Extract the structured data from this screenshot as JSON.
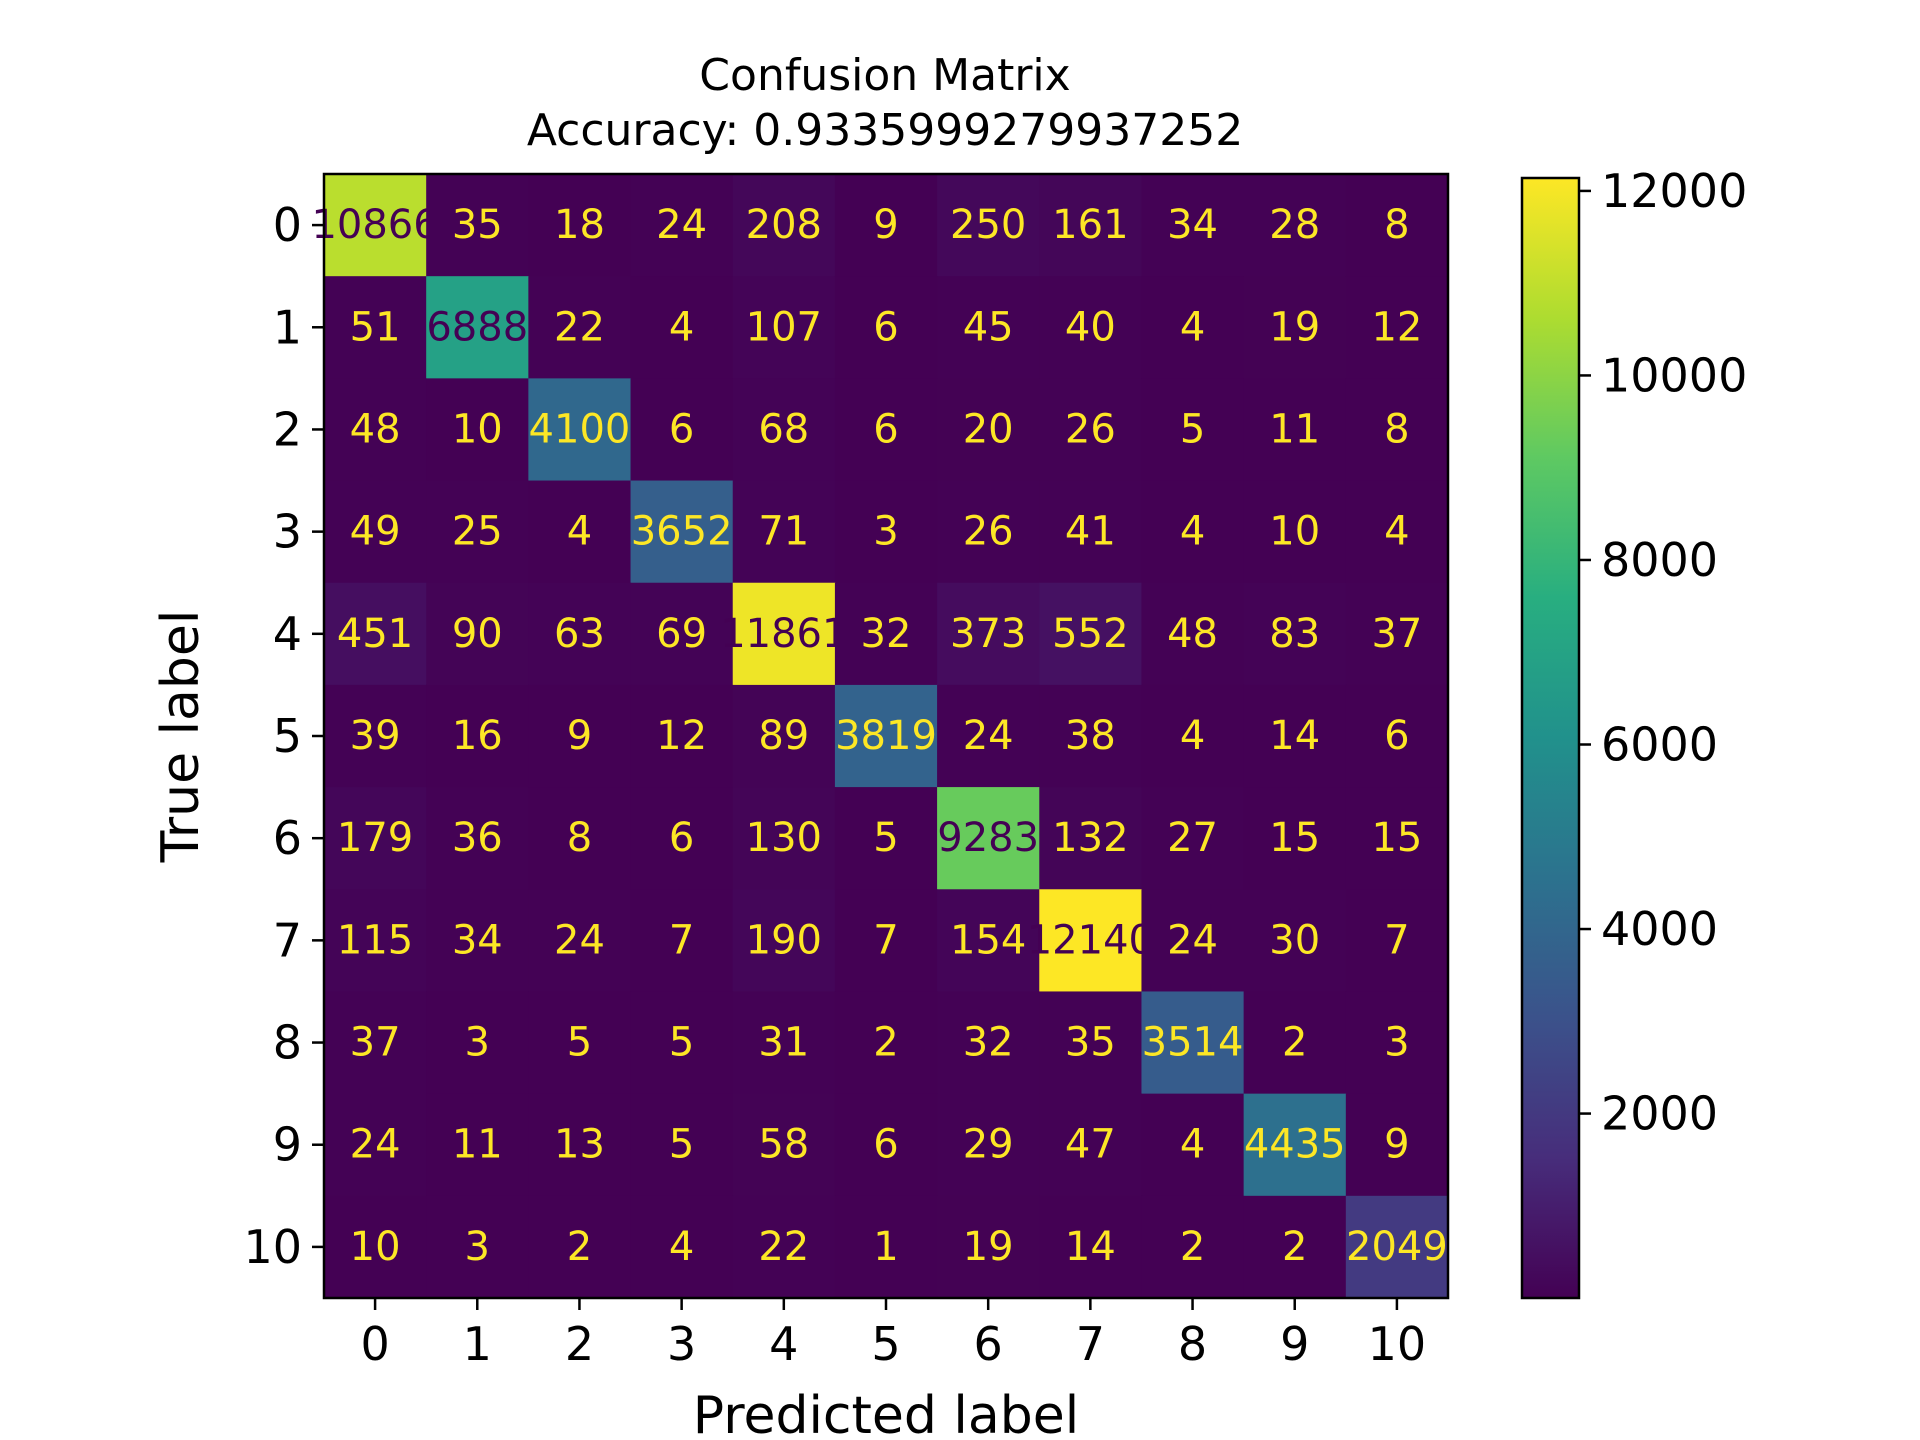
{
  "chart_data": {
    "type": "heatmap",
    "title": "Confusion Matrix",
    "subtitle": "Accuracy: 0.9335999279937252",
    "xlabel": "Predicted label",
    "ylabel": "True label",
    "x_categories": [
      "0",
      "1",
      "2",
      "3",
      "4",
      "5",
      "6",
      "7",
      "8",
      "9",
      "10"
    ],
    "y_categories": [
      "0",
      "1",
      "2",
      "3",
      "4",
      "5",
      "6",
      "7",
      "8",
      "9",
      "10"
    ],
    "matrix": [
      [
        10866,
        35,
        18,
        24,
        208,
        9,
        250,
        161,
        34,
        28,
        8
      ],
      [
        51,
        6888,
        22,
        4,
        107,
        6,
        45,
        40,
        4,
        19,
        12
      ],
      [
        48,
        10,
        4100,
        6,
        68,
        6,
        20,
        26,
        5,
        11,
        8
      ],
      [
        49,
        25,
        4,
        3652,
        71,
        3,
        26,
        41,
        4,
        10,
        4
      ],
      [
        451,
        90,
        63,
        69,
        11861,
        32,
        373,
        552,
        48,
        83,
        37
      ],
      [
        39,
        16,
        9,
        12,
        89,
        3819,
        24,
        38,
        4,
        14,
        6
      ],
      [
        179,
        36,
        8,
        6,
        130,
        5,
        9283,
        132,
        27,
        15,
        15
      ],
      [
        115,
        34,
        24,
        7,
        190,
        7,
        154,
        12140,
        24,
        30,
        7
      ],
      [
        37,
        3,
        5,
        5,
        31,
        2,
        32,
        35,
        3514,
        2,
        3
      ],
      [
        24,
        11,
        13,
        5,
        58,
        6,
        29,
        47,
        4,
        4435,
        9
      ],
      [
        10,
        3,
        2,
        4,
        22,
        1,
        19,
        14,
        2,
        2,
        2049
      ]
    ],
    "colormap": "viridis",
    "value_range": [
      1,
      12140
    ],
    "colorbar_ticks": [
      "2000",
      "4000",
      "6000",
      "8000",
      "10000",
      "12000"
    ],
    "colorbar_tick_values": [
      2000,
      4000,
      6000,
      8000,
      10000,
      12000
    ],
    "text_color_light": "#fde725",
    "text_color_dark": "#440154"
  }
}
